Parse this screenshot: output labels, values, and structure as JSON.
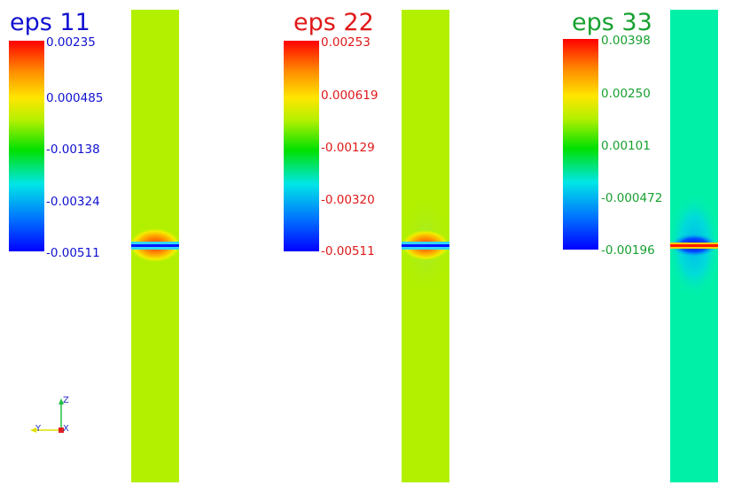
{
  "panels": [
    {
      "title": "eps 11",
      "color": "#1010d0",
      "ticks": [
        "0.00235",
        "0.000485",
        "-0.00138",
        "-0.00324",
        "-0.00511"
      ],
      "field_color": "#b2f000"
    },
    {
      "title": "eps 22",
      "color": "#e01818",
      "ticks": [
        "0.00253",
        "0.000619",
        "-0.00129",
        "-0.00320",
        "-0.00511"
      ],
      "field_color": "#b2f000"
    },
    {
      "title": "eps 33",
      "color": "#18a030",
      "ticks": [
        "0.00398",
        "0.00250",
        "0.00101",
        "-0.000472",
        "-0.00196"
      ],
      "field_color": "#00f0a8"
    }
  ],
  "axes": {
    "z": "Z",
    "y": "Y",
    "x": "X"
  },
  "colormap": [
    "#ff0000",
    "#ff8800",
    "#ffe600",
    "#b2f000",
    "#00e000",
    "#00e6e6",
    "#0070ff",
    "#0000ff"
  ]
}
